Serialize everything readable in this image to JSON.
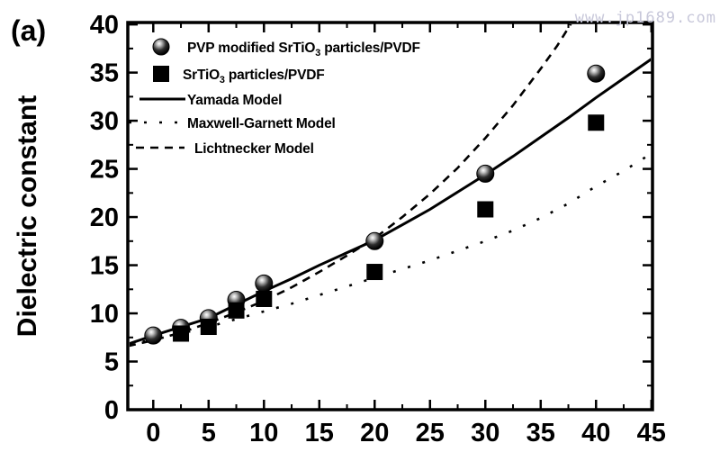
{
  "panel_label": "(a)",
  "watermark": "www.jp1689.com",
  "colors": {
    "foreground": "#000000",
    "background": "#ffffff",
    "watermark": "#c8c8da"
  },
  "chart_data": {
    "type": "line+scatter",
    "title": "",
    "xlabel": "",
    "ylabel": "Dielectric constant",
    "xlim": [
      -2.3,
      45.1
    ],
    "ylim": [
      0,
      40.2
    ],
    "x_major_ticks": [
      0,
      5,
      10,
      15,
      20,
      25,
      30,
      35,
      40,
      45
    ],
    "x_minor_ticks": [
      2.5,
      7.5,
      12.5,
      17.5,
      22.5,
      27.5,
      32.5,
      37.5,
      42.5
    ],
    "y_major_ticks": [
      0,
      5,
      10,
      15,
      20,
      25,
      30,
      35,
      40
    ],
    "y_minor_ticks": [
      2.5,
      7.5,
      12.5,
      17.5,
      22.5,
      27.5,
      32.5,
      37.5
    ],
    "grid": false,
    "legend_position": "top-left",
    "series": [
      {
        "name": "PVP modified SrTiO₃ particles/PVDF",
        "kind": "scatter",
        "marker": "sphere",
        "x": [
          0,
          2.5,
          5,
          7.5,
          10,
          20,
          30,
          40
        ],
        "y": [
          7.7,
          8.5,
          9.5,
          11.4,
          13.1,
          17.5,
          24.5,
          34.9
        ]
      },
      {
        "name": "SrTiO₃ particles/PVDF",
        "kind": "scatter",
        "marker": "square",
        "x": [
          2.5,
          5,
          7.5,
          10,
          20,
          30,
          40
        ],
        "y": [
          7.9,
          8.6,
          10.3,
          11.5,
          14.3,
          20.8,
          29.8
        ]
      },
      {
        "name": "Yamada Model",
        "kind": "line",
        "style": "solid",
        "x": [
          -2.3,
          0,
          2.5,
          5,
          7.5,
          10,
          12.5,
          15,
          17.5,
          20,
          22.5,
          25,
          27.5,
          30,
          32.5,
          35,
          37.5,
          40,
          42.5,
          45
        ],
        "y": [
          6.8,
          7.7,
          8.6,
          9.5,
          10.9,
          12.3,
          13.6,
          15.0,
          16.3,
          17.6,
          19.2,
          20.8,
          22.6,
          24.4,
          26.3,
          28.3,
          30.3,
          32.4,
          34.4,
          36.4
        ]
      },
      {
        "name": "Maxwell-Garnett Model",
        "kind": "line",
        "style": "dotted",
        "x": [
          -2.3,
          0,
          2.5,
          5,
          7.5,
          10,
          12.5,
          15,
          17.5,
          20,
          22.5,
          25,
          27.5,
          30,
          32.5,
          35,
          37.5,
          40,
          42.5,
          45
        ],
        "y": [
          6.7,
          7.3,
          7.9,
          8.6,
          9.4,
          10.2,
          11.0,
          11.9,
          12.8,
          13.7,
          14.6,
          15.5,
          16.5,
          17.5,
          18.6,
          19.9,
          21.4,
          23.2,
          24.8,
          26.6
        ]
      },
      {
        "name": "Lichtnecker Model",
        "kind": "line",
        "style": "dashed",
        "x": [
          -2.3,
          0,
          2.5,
          5,
          7.5,
          10,
          12.5,
          15,
          17.5,
          20,
          22.5,
          25,
          27.5,
          30,
          32.5,
          35,
          36.5,
          37.8
        ],
        "y": [
          6.6,
          7.2,
          8.0,
          9.0,
          10.1,
          11.3,
          12.7,
          14.3,
          16.0,
          17.8,
          20.0,
          22.4,
          25.1,
          28.2,
          31.6,
          35.4,
          37.8,
          40.2
        ]
      }
    ]
  }
}
